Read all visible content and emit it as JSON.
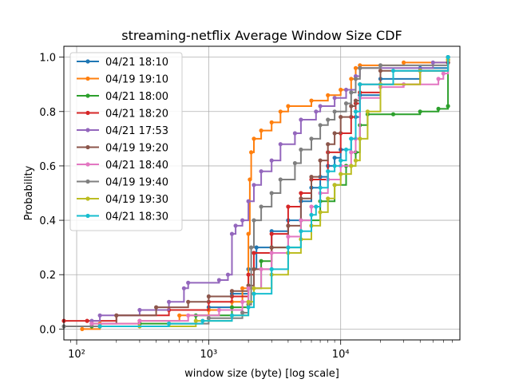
{
  "chart_data": {
    "type": "line",
    "title": "streaming-netflix Average Window Size CDF",
    "xlabel": "window size (byte) [log scale]",
    "ylabel": "Probability",
    "xscale": "log",
    "xlim": [
      80,
      80000
    ],
    "ylim": [
      -0.04,
      1.04
    ],
    "xticks": [
      {
        "value": 100,
        "label": "10²"
      },
      {
        "value": 1000,
        "label": "10³"
      },
      {
        "value": 10000,
        "label": "10⁴"
      }
    ],
    "yticks": [
      {
        "value": 0.0,
        "label": "0.0"
      },
      {
        "value": 0.2,
        "label": "0.2"
      },
      {
        "value": 0.4,
        "label": "0.4"
      },
      {
        "value": 0.6,
        "label": "0.6"
      },
      {
        "value": 0.8,
        "label": "0.8"
      },
      {
        "value": 1.0,
        "label": "1.0"
      }
    ],
    "grid": true,
    "legend_position": "upper-left",
    "series": [
      {
        "name": "04/21 18:10",
        "color": "#1f77b4",
        "points": [
          [
            1000,
            0.08
          ],
          [
            1500,
            0.13
          ],
          [
            2000,
            0.22
          ],
          [
            2300,
            0.3
          ],
          [
            3000,
            0.36
          ],
          [
            4000,
            0.4
          ],
          [
            5000,
            0.47
          ],
          [
            6000,
            0.52
          ],
          [
            7000,
            0.56
          ],
          [
            8000,
            0.6
          ],
          [
            9000,
            0.63
          ],
          [
            10000,
            0.66
          ],
          [
            12000,
            0.7
          ],
          [
            13000,
            0.78
          ],
          [
            14000,
            0.86
          ],
          [
            20000,
            0.92
          ],
          [
            40000,
            0.96
          ],
          [
            65000,
            1.0
          ]
        ]
      },
      {
        "name": "04/19 19:10",
        "color": "#ff7f0e",
        "points": [
          [
            110,
            0.0
          ],
          [
            150,
            0.02
          ],
          [
            300,
            0.03
          ],
          [
            600,
            0.05
          ],
          [
            1000,
            0.07
          ],
          [
            1500,
            0.1
          ],
          [
            1800,
            0.15
          ],
          [
            2000,
            0.35
          ],
          [
            2050,
            0.55
          ],
          [
            2100,
            0.65
          ],
          [
            2200,
            0.7
          ],
          [
            2500,
            0.73
          ],
          [
            3000,
            0.76
          ],
          [
            3500,
            0.8
          ],
          [
            4000,
            0.82
          ],
          [
            6000,
            0.84
          ],
          [
            8000,
            0.86
          ],
          [
            10000,
            0.88
          ],
          [
            12000,
            0.92
          ],
          [
            13000,
            0.96
          ],
          [
            14000,
            0.97
          ],
          [
            30000,
            0.98
          ],
          [
            65000,
            0.99
          ]
        ]
      },
      {
        "name": "04/21 18:00",
        "color": "#2ca02c",
        "points": [
          [
            130,
            0.01
          ],
          [
            300,
            0.02
          ],
          [
            800,
            0.05
          ],
          [
            1500,
            0.08
          ],
          [
            2000,
            0.15
          ],
          [
            2500,
            0.25
          ],
          [
            3000,
            0.3
          ],
          [
            5000,
            0.4
          ],
          [
            7000,
            0.47
          ],
          [
            9000,
            0.53
          ],
          [
            11000,
            0.6
          ],
          [
            13000,
            0.65
          ],
          [
            14000,
            0.75
          ],
          [
            16000,
            0.79
          ],
          [
            25000,
            0.79
          ],
          [
            40000,
            0.8
          ],
          [
            55000,
            0.81
          ],
          [
            65000,
            0.82
          ],
          [
            65000,
            1.0
          ]
        ]
      },
      {
        "name": "04/21 18:20",
        "color": "#d62728",
        "points": [
          [
            80,
            0.03
          ],
          [
            120,
            0.03
          ],
          [
            200,
            0.05
          ],
          [
            500,
            0.07
          ],
          [
            1000,
            0.1
          ],
          [
            1500,
            0.12
          ],
          [
            2000,
            0.2
          ],
          [
            2200,
            0.28
          ],
          [
            3000,
            0.35
          ],
          [
            4000,
            0.45
          ],
          [
            5000,
            0.5
          ],
          [
            6000,
            0.55
          ],
          [
            8000,
            0.65
          ],
          [
            10000,
            0.72
          ],
          [
            12000,
            0.78
          ],
          [
            13000,
            0.83
          ],
          [
            14000,
            0.87
          ],
          [
            20000,
            0.9
          ],
          [
            40000,
            0.95
          ],
          [
            65000,
            0.98
          ]
        ]
      },
      {
        "name": "04/21 17:53",
        "color": "#9467bd",
        "points": [
          [
            130,
            0.03
          ],
          [
            150,
            0.05
          ],
          [
            300,
            0.07
          ],
          [
            500,
            0.1
          ],
          [
            650,
            0.15
          ],
          [
            700,
            0.17
          ],
          [
            1200,
            0.18
          ],
          [
            1400,
            0.2
          ],
          [
            1500,
            0.35
          ],
          [
            1600,
            0.38
          ],
          [
            1800,
            0.4
          ],
          [
            2000,
            0.47
          ],
          [
            2200,
            0.53
          ],
          [
            2500,
            0.58
          ],
          [
            3000,
            0.62
          ],
          [
            3500,
            0.68
          ],
          [
            4500,
            0.72
          ],
          [
            5000,
            0.77
          ],
          [
            6500,
            0.8
          ],
          [
            7000,
            0.82
          ],
          [
            9000,
            0.85
          ],
          [
            11000,
            0.88
          ],
          [
            13000,
            0.93
          ],
          [
            14000,
            0.96
          ],
          [
            50000,
            0.98
          ],
          [
            65000,
            1.0
          ]
        ]
      },
      {
        "name": "04/19 19:20",
        "color": "#8c564b",
        "points": [
          [
            130,
            0.02
          ],
          [
            200,
            0.05
          ],
          [
            400,
            0.08
          ],
          [
            700,
            0.1
          ],
          [
            1000,
            0.12
          ],
          [
            1500,
            0.14
          ],
          [
            2000,
            0.16
          ],
          [
            2200,
            0.22
          ],
          [
            3000,
            0.3
          ],
          [
            4000,
            0.38
          ],
          [
            5000,
            0.48
          ],
          [
            6000,
            0.56
          ],
          [
            7000,
            0.62
          ],
          [
            8000,
            0.68
          ],
          [
            9000,
            0.72
          ],
          [
            10000,
            0.78
          ],
          [
            12000,
            0.82
          ],
          [
            13000,
            0.84
          ],
          [
            14000,
            0.9
          ],
          [
            20000,
            0.95
          ],
          [
            65000,
            0.98
          ]
        ]
      },
      {
        "name": "04/21 18:40",
        "color": "#e377c2",
        "points": [
          [
            130,
            0.02
          ],
          [
            300,
            0.03
          ],
          [
            700,
            0.05
          ],
          [
            1200,
            0.07
          ],
          [
            1800,
            0.1
          ],
          [
            2000,
            0.15
          ],
          [
            2500,
            0.22
          ],
          [
            3000,
            0.28
          ],
          [
            4000,
            0.34
          ],
          [
            5000,
            0.4
          ],
          [
            6000,
            0.45
          ],
          [
            7000,
            0.5
          ],
          [
            8000,
            0.55
          ],
          [
            10000,
            0.6
          ],
          [
            12000,
            0.65
          ],
          [
            13000,
            0.7
          ],
          [
            14000,
            0.85
          ],
          [
            20000,
            0.89
          ],
          [
            30000,
            0.9
          ],
          [
            55000,
            0.92
          ],
          [
            60000,
            0.94
          ],
          [
            65000,
            0.99
          ]
        ]
      },
      {
        "name": "04/19 19:40",
        "color": "#7f7f7f",
        "points": [
          [
            80,
            0.01
          ],
          [
            150,
            0.01
          ],
          [
            500,
            0.02
          ],
          [
            1000,
            0.04
          ],
          [
            1800,
            0.06
          ],
          [
            2000,
            0.09
          ],
          [
            2100,
            0.3
          ],
          [
            2200,
            0.4
          ],
          [
            2500,
            0.45
          ],
          [
            3000,
            0.5
          ],
          [
            3500,
            0.55
          ],
          [
            4500,
            0.61
          ],
          [
            5000,
            0.66
          ],
          [
            6000,
            0.7
          ],
          [
            7000,
            0.75
          ],
          [
            8000,
            0.77
          ],
          [
            9000,
            0.8
          ],
          [
            11000,
            0.83
          ],
          [
            12000,
            0.87
          ],
          [
            13000,
            0.92
          ],
          [
            14000,
            0.96
          ],
          [
            20000,
            0.97
          ],
          [
            65000,
            0.99
          ]
        ]
      },
      {
        "name": "04/19 19:30",
        "color": "#bcbd22",
        "points": [
          [
            150,
            0.01
          ],
          [
            300,
            0.01
          ],
          [
            800,
            0.03
          ],
          [
            1500,
            0.05
          ],
          [
            2000,
            0.1
          ],
          [
            2200,
            0.15
          ],
          [
            3000,
            0.2
          ],
          [
            4000,
            0.28
          ],
          [
            5000,
            0.33
          ],
          [
            6000,
            0.38
          ],
          [
            7000,
            0.43
          ],
          [
            8000,
            0.48
          ],
          [
            9000,
            0.53
          ],
          [
            10000,
            0.57
          ],
          [
            12000,
            0.6
          ],
          [
            13000,
            0.62
          ],
          [
            14000,
            0.7
          ],
          [
            16000,
            0.8
          ],
          [
            20000,
            0.9
          ],
          [
            40000,
            0.95
          ],
          [
            65000,
            0.99
          ]
        ]
      },
      {
        "name": "04/21 18:30",
        "color": "#17becf",
        "points": [
          [
            150,
            0.01
          ],
          [
            500,
            0.02
          ],
          [
            900,
            0.03
          ],
          [
            1500,
            0.05
          ],
          [
            2000,
            0.08
          ],
          [
            2200,
            0.13
          ],
          [
            3000,
            0.22
          ],
          [
            4000,
            0.3
          ],
          [
            5000,
            0.36
          ],
          [
            6000,
            0.42
          ],
          [
            6500,
            0.45
          ],
          [
            7000,
            0.52
          ],
          [
            8000,
            0.58
          ],
          [
            9000,
            0.6
          ],
          [
            10000,
            0.62
          ],
          [
            11000,
            0.66
          ],
          [
            12000,
            0.7
          ],
          [
            13000,
            0.8
          ],
          [
            14000,
            0.9
          ],
          [
            25000,
            0.95
          ],
          [
            65000,
            1.0
          ]
        ]
      }
    ]
  }
}
